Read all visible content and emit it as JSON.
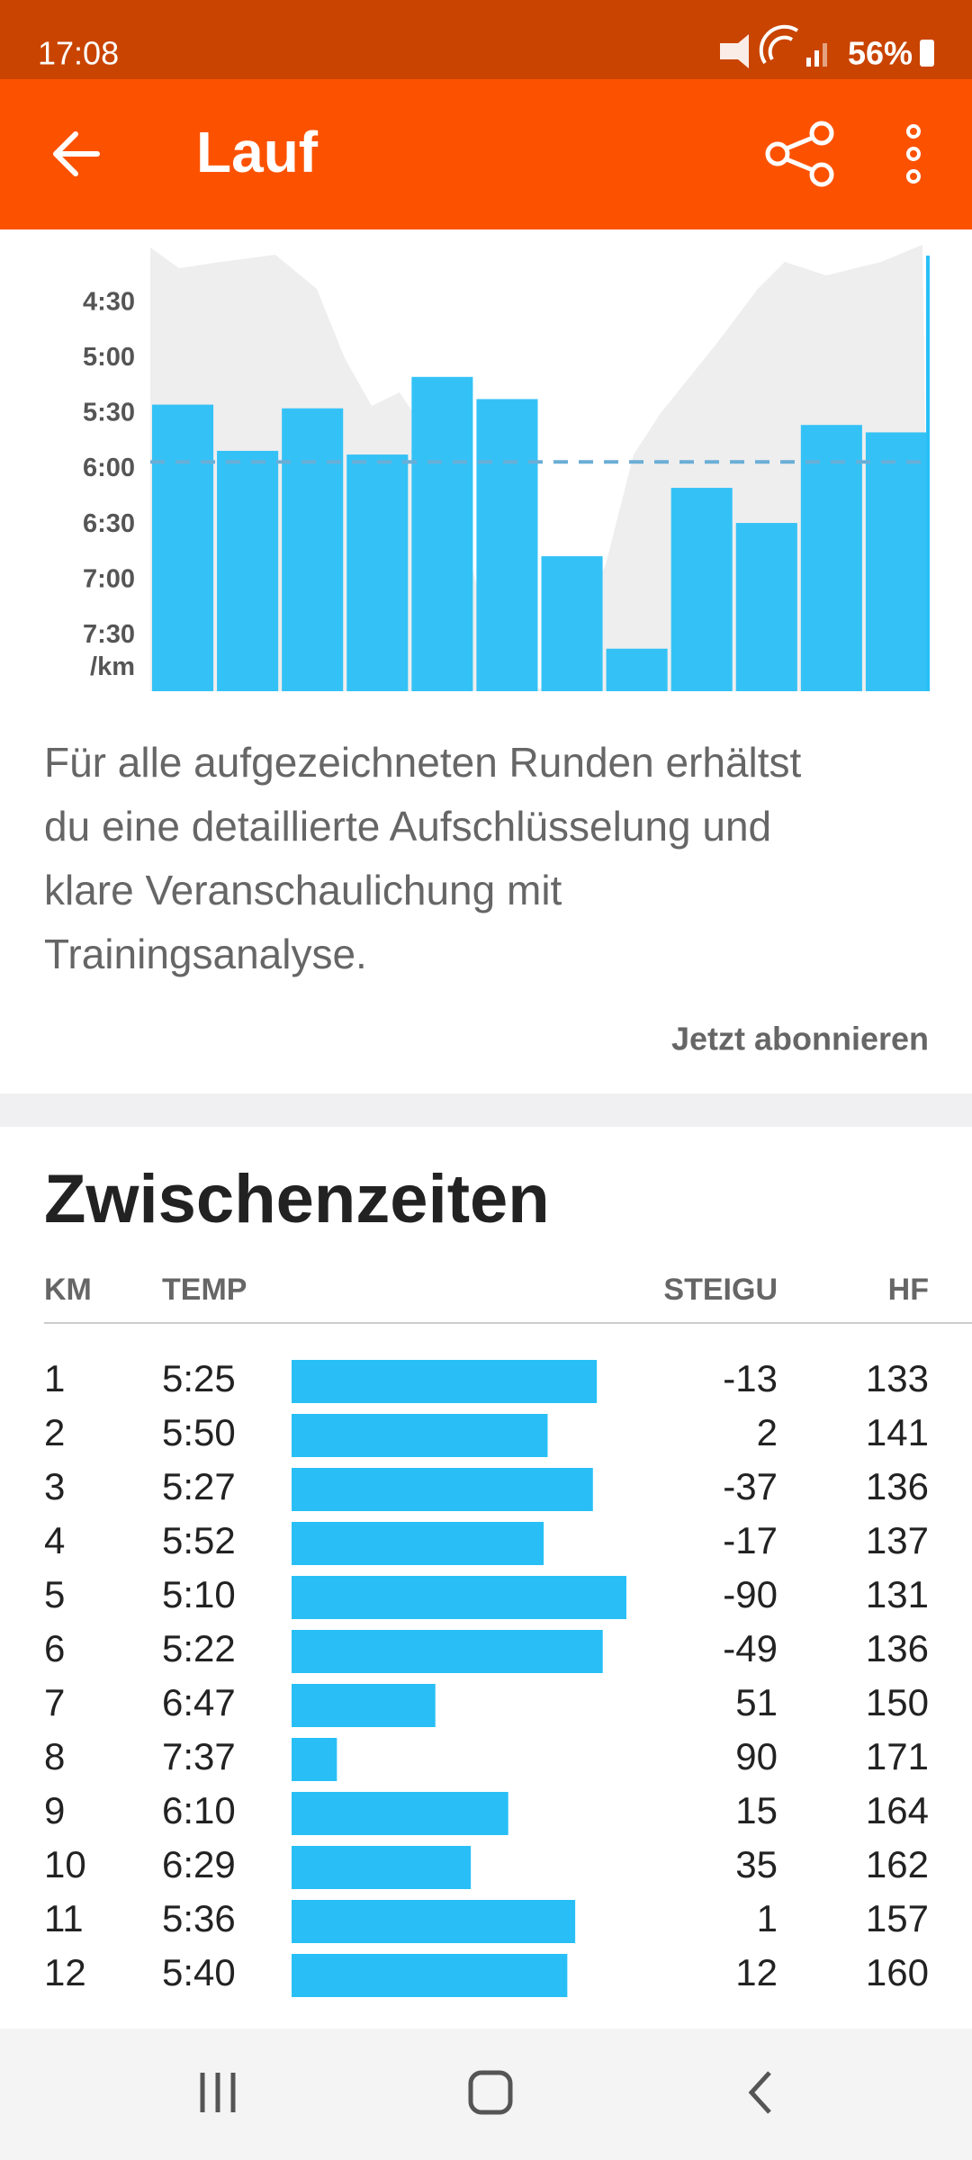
{
  "status_bar": {
    "time": "17:08",
    "battery": "56%"
  },
  "app_bar": {
    "title": "Lauf"
  },
  "chart_data": {
    "type": "bar",
    "values": [
      325,
      350,
      327,
      352,
      310,
      322,
      407,
      457,
      370,
      389,
      336,
      340
    ],
    "value_labels": [
      "5:25",
      "5:50",
      "5:27",
      "5:52",
      "5:10",
      "5:22",
      "6:47",
      "7:37",
      "6:10",
      "6:29",
      "5:36",
      "5:40"
    ],
    "color": "#29bff6",
    "ylim": [
      480,
      240
    ],
    "yticks": [
      {
        "value": 270,
        "label": "4:30"
      },
      {
        "value": 300,
        "label": "5:00"
      },
      {
        "value": 330,
        "label": "5:30"
      },
      {
        "value": 360,
        "label": "6:00"
      },
      {
        "value": 390,
        "label": "6:30"
      },
      {
        "value": 420,
        "label": "7:00"
      },
      {
        "value": 450,
        "label": "7:30"
      }
    ],
    "y_unit": "/km",
    "average": 356
  },
  "promo": {
    "lines": [
      "Für alle aufgezeichneten Runden erhältst",
      "du eine detaillierte Aufschlüsselung und",
      "klare Veranschaulichung mit",
      "Trainingsanalyse."
    ],
    "link": "Jetzt abonnieren"
  },
  "splits": {
    "title": "Zwischenzeiten",
    "columns": [
      "KM",
      "TEMP",
      "STEIGU",
      "HF"
    ],
    "rows": [
      {
        "km": 1,
        "elevation": -13,
        "hr": 133
      },
      {
        "km": 2,
        "elevation": 2,
        "hr": 141
      },
      {
        "km": 3,
        "elevation": -37,
        "hr": 136
      },
      {
        "km": 4,
        "elevation": -17,
        "hr": 137
      },
      {
        "km": 5,
        "elevation": -90,
        "hr": 131
      },
      {
        "km": 6,
        "elevation": -49,
        "hr": 136
      },
      {
        "km": 7,
        "elevation": 51,
        "hr": 150
      },
      {
        "km": 8,
        "elevation": 90,
        "hr": 171
      },
      {
        "km": 9,
        "elevation": 15,
        "hr": 164
      },
      {
        "km": 10,
        "elevation": 35,
        "hr": 162
      },
      {
        "km": 11,
        "elevation": 1,
        "hr": 157
      },
      {
        "km": 12,
        "elevation": 12,
        "hr": 160
      }
    ]
  }
}
